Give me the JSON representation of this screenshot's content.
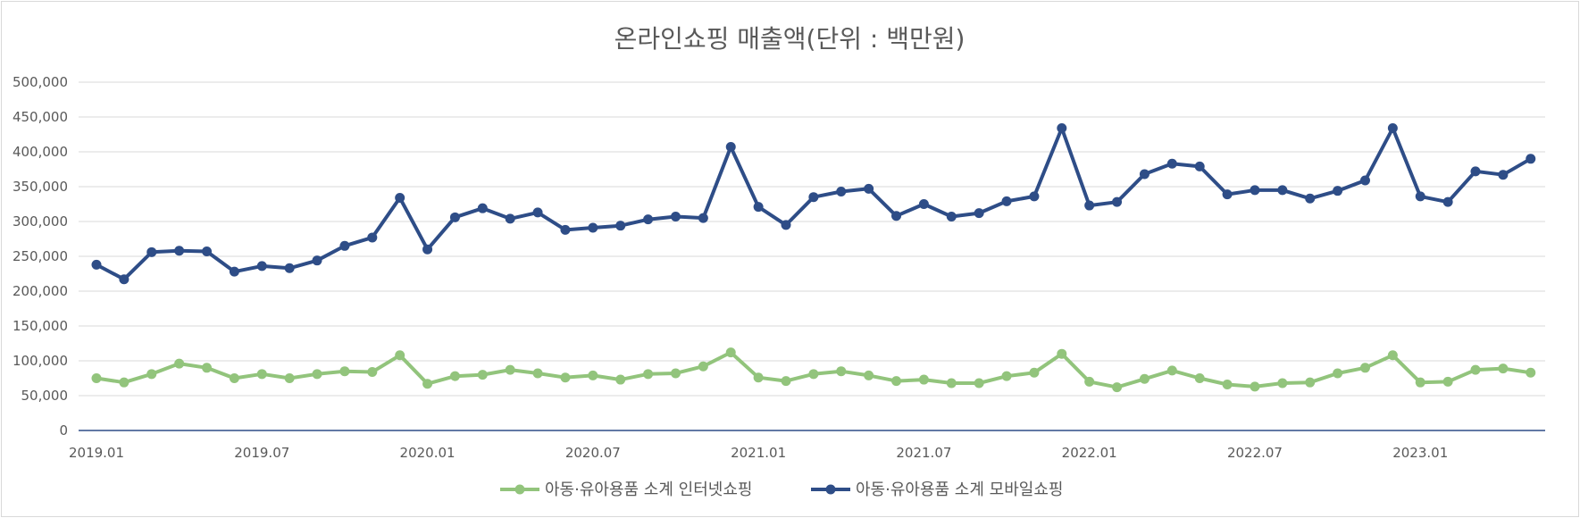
{
  "chart_data": {
    "type": "line",
    "title": "온라인쇼핑 매출액(단위 : 백만원)",
    "xlabel": "",
    "ylabel": "",
    "ylim": [
      0,
      500000
    ],
    "y_ticks": [
      "0",
      "50,000",
      "100,000",
      "150,000",
      "200,000",
      "250,000",
      "300,000",
      "350,000",
      "400,000",
      "450,000",
      "500,000"
    ],
    "x_tick_labels": [
      "2019.01",
      "2019.07",
      "2020.01",
      "2020.07",
      "2021.01",
      "2021.07",
      "2022.01",
      "2022.07",
      "2023.01"
    ],
    "grid": true,
    "legend_position": "bottom",
    "x": [
      "2019.01",
      "2019.02",
      "2019.03",
      "2019.04",
      "2019.05",
      "2019.06",
      "2019.07",
      "2019.08",
      "2019.09",
      "2019.10",
      "2019.11",
      "2019.12",
      "2020.01",
      "2020.02",
      "2020.03",
      "2020.04",
      "2020.05",
      "2020.06",
      "2020.07",
      "2020.08",
      "2020.09",
      "2020.10",
      "2020.11",
      "2020.12",
      "2021.01",
      "2021.02",
      "2021.03",
      "2021.04",
      "2021.05",
      "2021.06",
      "2021.07",
      "2021.08",
      "2021.09",
      "2021.10",
      "2021.11",
      "2021.12",
      "2022.01",
      "2022.02",
      "2022.03",
      "2022.04",
      "2022.05",
      "2022.06",
      "2022.07",
      "2022.08",
      "2022.09",
      "2022.10",
      "2022.11",
      "2022.12",
      "2023.01",
      "2023.02",
      "2023.03",
      "2023.04",
      "2023.05"
    ],
    "series": [
      {
        "name": "아동·유아용품 소계 인터넷쇼핑",
        "color": "#92c47c",
        "values": [
          75000,
          69000,
          81000,
          96000,
          90000,
          75000,
          81000,
          75000,
          81000,
          85000,
          84000,
          108000,
          67000,
          78000,
          80000,
          87000,
          82000,
          76000,
          79000,
          73000,
          81000,
          82000,
          92000,
          112000,
          76000,
          71000,
          81000,
          85000,
          79000,
          71000,
          73000,
          68000,
          68000,
          78000,
          83000,
          110000,
          70000,
          62000,
          74000,
          86000,
          75000,
          66000,
          63000,
          68000,
          69000,
          82000,
          90000,
          108000,
          69000,
          70000,
          87000,
          89000,
          83000
        ]
      },
      {
        "name": "아동·유아용품 소계 모바일쇼핑",
        "color": "#2e4d87",
        "values": [
          238000,
          217000,
          256000,
          258000,
          257000,
          228000,
          236000,
          233000,
          244000,
          265000,
          277000,
          334000,
          260000,
          306000,
          319000,
          304000,
          313000,
          288000,
          291000,
          294000,
          303000,
          307000,
          305000,
          407000,
          321000,
          295000,
          335000,
          343000,
          347000,
          308000,
          325000,
          307000,
          312000,
          329000,
          336000,
          434000,
          323000,
          328000,
          368000,
          383000,
          379000,
          339000,
          345000,
          345000,
          333000,
          344000,
          359000,
          434000,
          336000,
          328000,
          372000,
          367000,
          390000
        ]
      }
    ]
  }
}
